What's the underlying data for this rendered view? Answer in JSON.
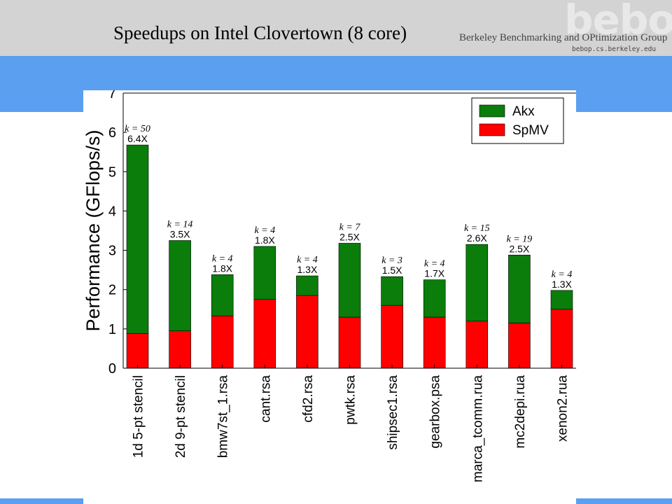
{
  "slide": {
    "title": "Speedups on Intel Clovertown (8 core)",
    "logo": "bebop",
    "group_name": "Berkeley Benchmarking and OPtimization Group",
    "group_url": "bebop.cs.berkeley.edu"
  },
  "colors": {
    "header": "#d3d3d3",
    "band": "#5a9ff0",
    "akx": "#0a7d0a",
    "spmv": "#ff0000"
  },
  "chart_data": {
    "type": "bar",
    "stacked": true,
    "ylabel": "Performance (GFlops/s)",
    "ylim": [
      0,
      7
    ],
    "yticks": [
      0,
      1,
      2,
      3,
      4,
      5,
      6,
      7
    ],
    "categories": [
      "1d 5-pt stencil",
      "2d 9-pt stencil",
      "bmw7st_1.rsa",
      "cant.rsa",
      "cfd2.rsa",
      "pwtk.rsa",
      "shipsec1.rsa",
      "gearbox.psa",
      "marca_tcomm.rua",
      "mc2depi.rua",
      "xenon2.rua"
    ],
    "series": [
      {
        "name": "SpMV",
        "values": [
          0.88,
          0.95,
          1.33,
          1.75,
          1.85,
          1.3,
          1.6,
          1.3,
          1.2,
          1.15,
          1.5
        ]
      },
      {
        "name": "Akx",
        "values": [
          4.8,
          2.3,
          1.05,
          1.35,
          0.5,
          1.88,
          0.73,
          0.95,
          1.95,
          1.73,
          0.48
        ]
      }
    ],
    "k_labels": [
      "k = 50",
      "k = 14",
      "k = 4",
      "k = 4",
      "k = 4",
      "k = 7",
      "k = 3",
      "k = 4",
      "k = 15",
      "k = 19",
      "k = 4"
    ],
    "speedups": [
      "6.4X",
      "3.5X",
      "1.8X",
      "1.8X",
      "1.3X",
      "2.5X",
      "1.5X",
      "1.7X",
      "2.6X",
      "2.5X",
      "1.3X"
    ],
    "legend": {
      "position": "top-right",
      "entries": [
        "Akx",
        "SpMV"
      ]
    },
    "grid": false
  }
}
